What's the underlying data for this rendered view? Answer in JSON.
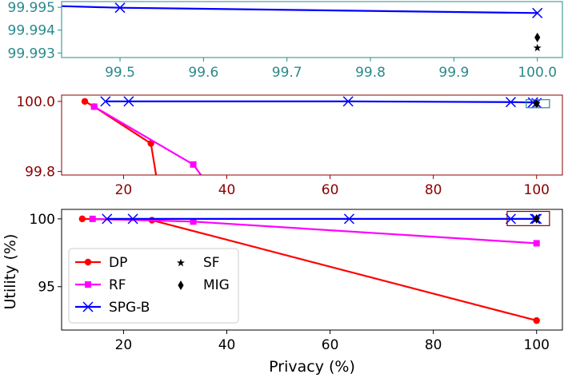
{
  "colors": {
    "teal": "#2a8a8a",
    "maroon": "#8b0000",
    "dp": "#ff0000",
    "rf": "#ff00ff",
    "spg": "#0000ff",
    "black": "#000000"
  },
  "chart_data": [
    {
      "type": "line",
      "name": "zoom-top",
      "xlim": [
        99.43,
        100.03
      ],
      "ylim": [
        99.9928,
        99.99525
      ],
      "xticks": [
        {
          "v": 99.5,
          "label": "99.5"
        },
        {
          "v": 99.6,
          "label": "99.6"
        },
        {
          "v": 99.7,
          "label": "99.7"
        },
        {
          "v": 99.8,
          "label": "99.8"
        },
        {
          "v": 99.9,
          "label": "99.9"
        },
        {
          "v": 100.0,
          "label": "100.0"
        }
      ],
      "yticks": [
        {
          "v": 99.995,
          "label": "99.995"
        },
        {
          "v": 99.994,
          "label": "99.994"
        },
        {
          "v": 99.993,
          "label": "99.993"
        }
      ],
      "series": [
        {
          "name": "SPG-B",
          "marker": "x",
          "x": [
            99.43,
            99.5,
            100.0
          ],
          "y": [
            99.99505,
            99.99498,
            99.99475
          ],
          "markerMask": [
            false,
            true,
            true
          ]
        },
        {
          "name": "SF",
          "marker": "star",
          "x": [
            100.0
          ],
          "y": [
            99.99322
          ]
        },
        {
          "name": "MIG",
          "marker": "diamond",
          "x": [
            100.0
          ],
          "y": [
            99.99368
          ]
        }
      ]
    },
    {
      "type": "line",
      "name": "zoom-middle",
      "xlim": [
        8.0,
        105.0
      ],
      "ylim": [
        99.79,
        100.018
      ],
      "xticks": [
        {
          "v": 20,
          "label": "20"
        },
        {
          "v": 40,
          "label": "40"
        },
        {
          "v": 60,
          "label": "60"
        },
        {
          "v": 80,
          "label": "80"
        },
        {
          "v": 100,
          "label": "100"
        }
      ],
      "yticks": [
        {
          "v": 100.0,
          "label": "100.0"
        },
        {
          "v": 99.8,
          "label": "99.8"
        }
      ],
      "series": [
        {
          "name": "DP",
          "marker": "circle",
          "x": [
            12.5,
            14.3,
            25.3,
            26.3
          ],
          "y": [
            100.0,
            99.985,
            99.88,
            99.79
          ],
          "markerMask": [
            true,
            true,
            true,
            false
          ]
        },
        {
          "name": "RF",
          "marker": "square",
          "x": [
            14.3,
            33.5,
            35.0
          ],
          "y": [
            99.985,
            99.82,
            99.79
          ],
          "markerMask": [
            true,
            true,
            false
          ]
        },
        {
          "name": "SPG-B",
          "marker": "x",
          "x": [
            16.5,
            21.0,
            63.5,
            95.0,
            99.3,
            100.0
          ],
          "y": [
            100.0,
            100.0,
            100.0,
            99.998,
            99.997,
            99.995
          ]
        },
        {
          "name": "SF",
          "marker": "star",
          "x": [
            100.0
          ],
          "y": [
            99.994
          ]
        },
        {
          "name": "MIG",
          "marker": "diamond",
          "x": [
            100.0
          ],
          "y": [
            99.994
          ]
        }
      ]
    },
    {
      "type": "line",
      "name": "main",
      "xlim": [
        8.0,
        105.0
      ],
      "ylim": [
        91.8,
        100.7
      ],
      "xlabel": "Privacy (%)",
      "ylabel": "Utility (%)",
      "xticks": [
        {
          "v": 20,
          "label": "20"
        },
        {
          "v": 40,
          "label": "40"
        },
        {
          "v": 60,
          "label": "60"
        },
        {
          "v": 80,
          "label": "80"
        },
        {
          "v": 100,
          "label": "100"
        }
      ],
      "yticks": [
        {
          "v": 100,
          "label": "100"
        },
        {
          "v": 95,
          "label": "95"
        }
      ],
      "series": [
        {
          "name": "DP",
          "marker": "circle",
          "x": [
            12.0,
            25.5,
            100.0
          ],
          "y": [
            100.0,
            99.9,
            92.5
          ]
        },
        {
          "name": "RF",
          "marker": "square",
          "x": [
            14.0,
            33.5,
            100.0
          ],
          "y": [
            100.0,
            99.8,
            98.2
          ]
        },
        {
          "name": "SPG-B",
          "marker": "x",
          "x": [
            16.8,
            21.8,
            63.7,
            95.0,
            99.7,
            100.0
          ],
          "y": [
            100.0,
            100.0,
            100.0,
            100.0,
            100.0,
            100.0
          ]
        },
        {
          "name": "SF",
          "marker": "star",
          "x": [
            100.0
          ],
          "y": [
            100.0
          ]
        },
        {
          "name": "MIG",
          "marker": "diamond",
          "x": [
            100.0
          ],
          "y": [
            100.0
          ]
        }
      ],
      "legend": {
        "placement": "lower-left",
        "entries": [
          {
            "label": "DP",
            "marker": "circle",
            "line": true,
            "color": "#ff0000"
          },
          {
            "label": "RF",
            "marker": "square",
            "line": true,
            "color": "#ff00ff"
          },
          {
            "label": "SPG-B",
            "marker": "x",
            "line": true,
            "color": "#0000ff"
          },
          {
            "label": "SF",
            "marker": "star",
            "line": false,
            "color": "#000000"
          },
          {
            "label": "MIG",
            "marker": "diamond",
            "line": false,
            "color": "#000000"
          }
        ]
      }
    }
  ]
}
